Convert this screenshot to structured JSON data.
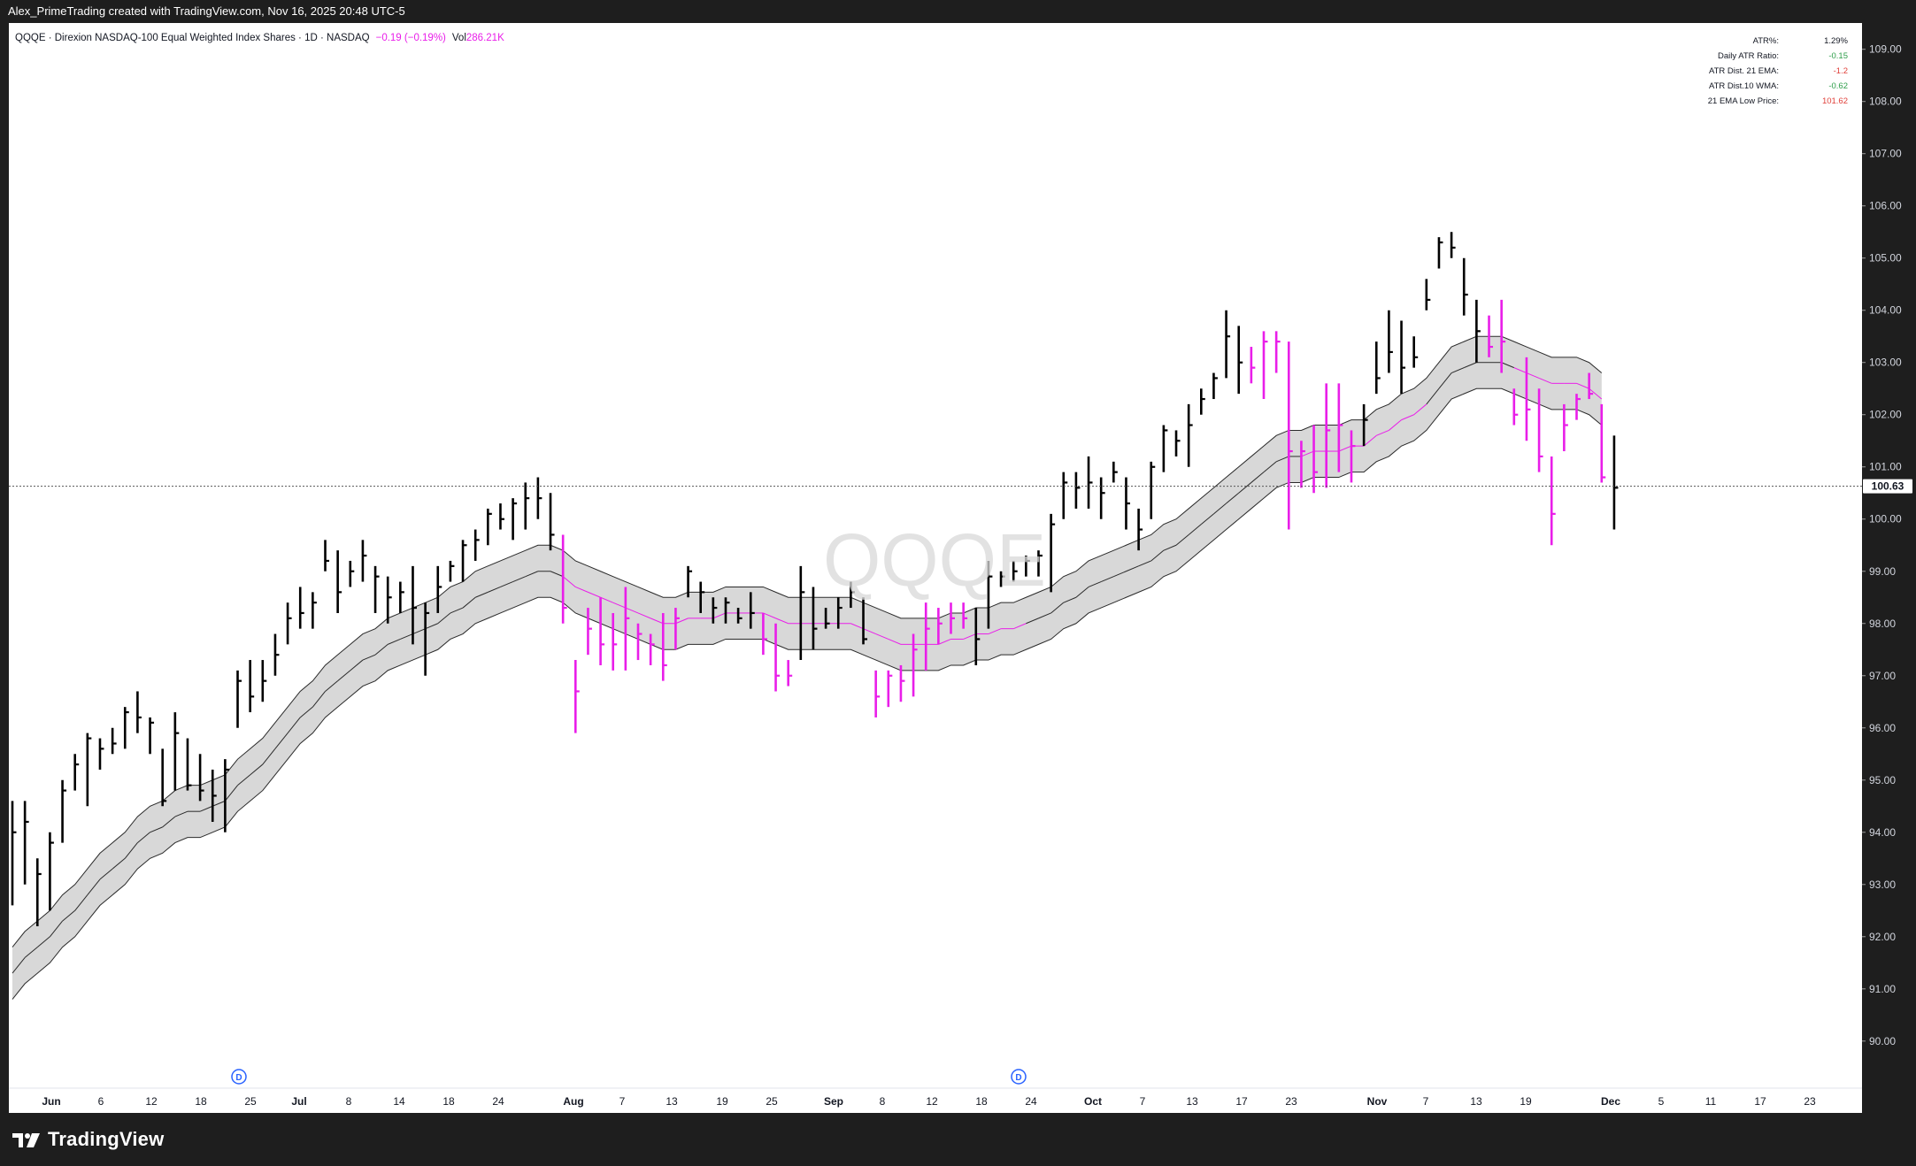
{
  "header": {
    "attribution": "Alex_PrimeTrading created with TradingView.com, Nov 16, 2025 20:48 UTC-5"
  },
  "legend": {
    "symbol": "QQQE",
    "description": "Direxion NASDAQ-100 Equal Weighted Index Shares",
    "interval": "1D",
    "exchange": "NASDAQ",
    "change": "−0.19 (−0.19%)",
    "volume_label": "Vol",
    "volume_value": "286.21K"
  },
  "watermark": "QQQE",
  "stats_table": [
    {
      "label": "ATR%:",
      "value": "1.29%",
      "color": "#131722"
    },
    {
      "label": "Daily ATR Ratio:",
      "value": "-0.15",
      "color": "#2e9e4a"
    },
    {
      "label": "ATR Dist. 21 EMA:",
      "value": "-1.2",
      "color": "#e0403a"
    },
    {
      "label": "ATR Dist.10 WMA:",
      "value": "-0.62",
      "color": "#2e9e4a"
    },
    {
      "label": "21 EMA Low Price:",
      "value": "101.62",
      "color": "#e0403a"
    }
  ],
  "last_price": "100.63",
  "footer": {
    "brand": "TradingView"
  },
  "colors": {
    "up_bar": "#000000",
    "down_bar": "#e91ee9",
    "ema": "#e91ee9",
    "band_fill": "#d4d4d4",
    "band_line": "#2a2a2a"
  },
  "dividend_markers": [
    {
      "date_label": "Jun 21",
      "text": "D"
    },
    {
      "date_label": "Sep 22",
      "text": "D"
    }
  ],
  "chart_data": {
    "type": "ohlc",
    "title": "",
    "xlabel": "",
    "ylabel": "",
    "ylim": [
      89.2,
      109.3
    ],
    "y_ticks": [
      "90.00",
      "91.00",
      "92.00",
      "93.00",
      "94.00",
      "95.00",
      "96.00",
      "97.00",
      "98.00",
      "99.00",
      "100.00",
      "101.00",
      "102.00",
      "103.00",
      "104.00",
      "105.00",
      "106.00",
      "107.00",
      "108.00",
      "109.00"
    ],
    "x_ticks": [
      "Jun",
      "6",
      "12",
      "18",
      "25",
      "Jul",
      "8",
      "14",
      "18",
      "24",
      "Aug",
      "7",
      "13",
      "19",
      "25",
      "Sep",
      "8",
      "12",
      "18",
      "24",
      "Oct",
      "7",
      "13",
      "17",
      "23",
      "Nov",
      "7",
      "13",
      "19",
      "Dec",
      "5",
      "11",
      "17",
      "23"
    ],
    "bars": [
      [
        94.6,
        92.6,
        94.0
      ],
      [
        94.6,
        93.0,
        94.2
      ],
      [
        93.5,
        92.2,
        93.2
      ],
      [
        94.0,
        92.5,
        93.8
      ],
      [
        95.0,
        93.8,
        94.8
      ],
      [
        95.5,
        94.8,
        95.3
      ],
      [
        95.9,
        94.5,
        95.8
      ],
      [
        95.8,
        95.2,
        95.6
      ],
      [
        96.0,
        95.5,
        95.7
      ],
      [
        96.4,
        95.6,
        96.3
      ],
      [
        96.7,
        95.9,
        96.2
      ],
      [
        96.2,
        95.5,
        96.1
      ],
      [
        95.6,
        94.5,
        94.6
      ],
      [
        96.3,
        94.8,
        95.9
      ],
      [
        95.8,
        94.8,
        94.9
      ],
      [
        95.5,
        94.6,
        94.8
      ],
      [
        95.2,
        94.2,
        94.7
      ],
      [
        95.4,
        94.0,
        95.2
      ],
      [
        97.1,
        96.0,
        96.9
      ],
      [
        97.3,
        96.3,
        96.6
      ],
      [
        97.3,
        96.5,
        96.9
      ],
      [
        97.8,
        97.0,
        97.4
      ],
      [
        98.4,
        97.6,
        98.1
      ],
      [
        98.7,
        97.9,
        98.2
      ],
      [
        98.6,
        97.9,
        98.4
      ],
      [
        99.6,
        99.0,
        99.2
      ],
      [
        99.4,
        98.2,
        98.6
      ],
      [
        99.2,
        98.7,
        99.0
      ],
      [
        99.6,
        98.8,
        99.3
      ],
      [
        99.1,
        98.2,
        98.9
      ],
      [
        98.9,
        98.0,
        98.5
      ],
      [
        98.8,
        98.2,
        98.6
      ],
      [
        99.1,
        97.6,
        98.3
      ],
      [
        98.4,
        97.0,
        98.2
      ],
      [
        99.1,
        98.2,
        98.7
      ],
      [
        99.2,
        98.8,
        99.1
      ],
      [
        99.6,
        98.8,
        99.5
      ],
      [
        99.8,
        99.2,
        99.6
      ],
      [
        100.2,
        99.5,
        100.1
      ],
      [
        100.3,
        99.8,
        100.0
      ],
      [
        100.4,
        99.6,
        100.3
      ],
      [
        100.7,
        99.8,
        100.4
      ],
      [
        100.8,
        100.0,
        100.4
      ],
      [
        100.5,
        99.4,
        99.7
      ],
      [
        99.7,
        98.0,
        98.3
      ],
      [
        97.3,
        95.9,
        96.7
      ],
      [
        98.3,
        97.4,
        97.9
      ],
      [
        98.5,
        97.2,
        97.6
      ],
      [
        98.2,
        97.1,
        97.6
      ],
      [
        98.7,
        97.1,
        98.1
      ],
      [
        98.0,
        97.3,
        97.8
      ],
      [
        97.8,
        97.2,
        97.6
      ],
      [
        98.2,
        96.9,
        97.2
      ],
      [
        98.3,
        97.5,
        98.1
      ],
      [
        99.1,
        98.5,
        99.0
      ],
      [
        98.8,
        98.2,
        98.6
      ],
      [
        98.5,
        98.0,
        98.3
      ],
      [
        98.5,
        98.0,
        98.4
      ],
      [
        98.3,
        98.0,
        98.1
      ],
      [
        98.6,
        97.9,
        98.2
      ],
      [
        98.2,
        97.4,
        97.7
      ],
      [
        98.0,
        96.7,
        97.0
      ],
      [
        97.3,
        96.8,
        97.0
      ],
      [
        99.1,
        97.3,
        98.6
      ],
      [
        98.7,
        97.5,
        97.9
      ],
      [
        98.3,
        97.9,
        98.0
      ],
      [
        98.5,
        97.9,
        98.3
      ],
      [
        98.8,
        98.3,
        98.6
      ],
      [
        98.5,
        97.6,
        97.7
      ],
      [
        97.1,
        96.2,
        96.6
      ],
      [
        97.1,
        96.4,
        97.0
      ],
      [
        97.2,
        96.5,
        96.9
      ],
      [
        97.8,
        96.6,
        97.5
      ],
      [
        98.4,
        97.1,
        97.9
      ],
      [
        98.3,
        97.6,
        98.0
      ],
      [
        98.4,
        97.8,
        98.1
      ],
      [
        98.4,
        97.9,
        98.1
      ],
      [
        98.3,
        97.2,
        97.7
      ],
      [
        99.2,
        97.9,
        98.9
      ],
      [
        99.0,
        98.7,
        98.9
      ],
      [
        99.2,
        98.8,
        99.0
      ],
      [
        99.3,
        98.9,
        99.2
      ],
      [
        99.4,
        98.9,
        99.3
      ],
      [
        100.1,
        98.6,
        99.9
      ],
      [
        100.9,
        100.0,
        100.7
      ],
      [
        100.9,
        100.2,
        100.6
      ],
      [
        101.2,
        100.2,
        100.7
      ],
      [
        100.8,
        100.0,
        100.5
      ],
      [
        101.1,
        100.7,
        100.9
      ],
      [
        100.8,
        99.8,
        100.3
      ],
      [
        100.2,
        99.4,
        99.8
      ],
      [
        101.1,
        100.0,
        101.0
      ],
      [
        101.8,
        100.9,
        101.7
      ],
      [
        101.7,
        101.2,
        101.5
      ],
      [
        102.2,
        101.0,
        101.8
      ],
      [
        102.5,
        102.0,
        102.3
      ],
      [
        102.8,
        102.3,
        102.7
      ],
      [
        104.0,
        102.7,
        103.5
      ],
      [
        103.7,
        102.4,
        103.0
      ],
      [
        103.3,
        102.6,
        102.9
      ],
      [
        103.6,
        102.3,
        103.4
      ],
      [
        103.6,
        102.8,
        103.4
      ],
      [
        103.4,
        99.8,
        101.3
      ],
      [
        101.5,
        100.6,
        101.3
      ],
      [
        101.8,
        100.5,
        100.9
      ],
      [
        102.6,
        100.6,
        101.7
      ],
      [
        102.6,
        100.9,
        101.8
      ],
      [
        101.7,
        100.7,
        101.4
      ],
      [
        102.2,
        101.4,
        101.9
      ],
      [
        103.4,
        102.4,
        102.7
      ],
      [
        104.0,
        102.8,
        103.2
      ],
      [
        103.8,
        102.4,
        102.9
      ],
      [
        103.5,
        102.9,
        103.1
      ],
      [
        104.6,
        104.0,
        104.2
      ],
      [
        105.4,
        104.8,
        105.3
      ],
      [
        105.5,
        105.0,
        105.2
      ],
      [
        105.0,
        103.9,
        104.3
      ],
      [
        104.2,
        103.0,
        103.6
      ],
      [
        103.9,
        103.1,
        103.3
      ],
      [
        104.2,
        102.8,
        103.4
      ],
      [
        102.5,
        101.8,
        102.0
      ],
      [
        103.1,
        101.5,
        102.1
      ],
      [
        102.5,
        100.9,
        101.2
      ],
      [
        101.2,
        99.5,
        100.1
      ],
      [
        102.2,
        101.3,
        101.8
      ],
      [
        102.4,
        101.9,
        102.3
      ],
      [
        102.8,
        102.3,
        102.4
      ],
      [
        102.2,
        100.7,
        100.8
      ],
      [
        101.6,
        99.8,
        100.6
      ]
    ],
    "ema21": [
      91.3,
      91.6,
      91.8,
      92.0,
      92.3,
      92.5,
      92.8,
      93.1,
      93.3,
      93.5,
      93.8,
      94.0,
      94.1,
      94.3,
      94.4,
      94.4,
      94.5,
      94.6,
      94.9,
      95.1,
      95.3,
      95.6,
      95.9,
      96.2,
      96.4,
      96.7,
      96.9,
      97.1,
      97.3,
      97.4,
      97.6,
      97.7,
      97.8,
      97.9,
      98.0,
      98.2,
      98.3,
      98.5,
      98.6,
      98.7,
      98.8,
      98.9,
      99.0,
      99.0,
      98.9,
      98.7,
      98.6,
      98.5,
      98.4,
      98.3,
      98.2,
      98.1,
      98.0,
      98.0,
      98.1,
      98.1,
      98.1,
      98.2,
      98.2,
      98.2,
      98.2,
      98.1,
      98.0,
      98.0,
      98.0,
      98.0,
      98.0,
      98.0,
      97.9,
      97.8,
      97.7,
      97.6,
      97.6,
      97.6,
      97.6,
      97.7,
      97.7,
      97.8,
      97.8,
      97.9,
      97.9,
      98.0,
      98.1,
      98.2,
      98.4,
      98.5,
      98.7,
      98.8,
      98.9,
      99.0,
      99.1,
      99.2,
      99.4,
      99.5,
      99.7,
      99.9,
      100.1,
      100.3,
      100.5,
      100.7,
      100.9,
      101.1,
      101.2,
      101.2,
      101.3,
      101.3,
      101.3,
      101.4,
      101.4,
      101.6,
      101.7,
      101.9,
      102.0,
      102.2,
      102.5,
      102.8,
      102.9,
      103.0,
      103.0,
      103.0,
      102.9,
      102.8,
      102.7,
      102.6,
      102.6,
      102.6,
      102.5,
      102.3
    ],
    "band_half_width": 0.5
  }
}
